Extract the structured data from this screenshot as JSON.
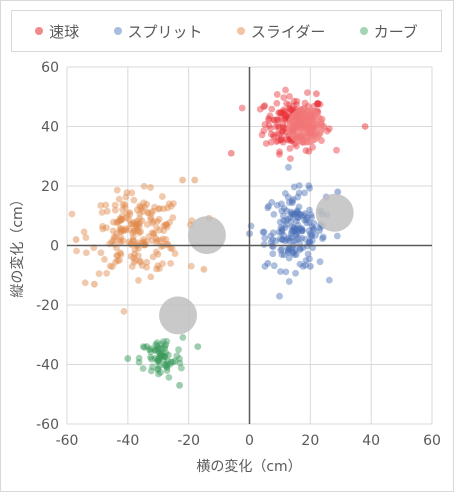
{
  "chart_data": {
    "type": "scatter",
    "xlabel": "横の変化（cm）",
    "ylabel": "縦の変化（cm）",
    "xlim": [
      -60,
      60
    ],
    "ylim": [
      -60,
      60
    ],
    "xticks": [
      -60,
      -40,
      -20,
      0,
      20,
      40,
      60
    ],
    "yticks": [
      -60,
      -40,
      -20,
      0,
      20,
      40,
      60
    ],
    "grid": true,
    "legend_position": "top",
    "series": [
      {
        "name": "速球",
        "color": "#e8343a",
        "center": {
          "x": 15,
          "y": 41,
          "sx": 5,
          "sy": 4.5
        },
        "count": 200,
        "points": [
          [
            38,
            40
          ],
          [
            -6,
            31
          ],
          [
            5,
            47
          ],
          [
            22,
            51
          ]
        ]
      },
      {
        "name": "スプリット",
        "color": "#4a6fb5",
        "center": {
          "x": 15,
          "y": 5,
          "sx": 5,
          "sy": 6.5
        },
        "count": 170,
        "points": [
          [
            0,
            4
          ],
          [
            29,
            18
          ],
          [
            6,
            -6
          ],
          [
            20,
            -7
          ]
        ]
      },
      {
        "name": "スライダー",
        "color": "#e08a4c",
        "center": {
          "x": -37,
          "y": 4,
          "sx": 7.5,
          "sy": 6.5
        },
        "count": 200,
        "points": [
          [
            -18,
            22
          ],
          [
            -22,
            22
          ],
          [
            -57,
            2
          ],
          [
            -51,
            -13
          ],
          [
            -15,
            -8
          ]
        ]
      },
      {
        "name": "カーブ",
        "color": "#3a9a5c",
        "center": {
          "x": -29,
          "y": -38,
          "sx": 3.5,
          "sy": 3.5
        },
        "count": 70,
        "points": [
          [
            -40,
            -38
          ],
          [
            -23,
            -47
          ],
          [
            -17,
            -34
          ]
        ]
      }
    ],
    "averages": [
      {
        "x": 18.5,
        "y": 40
      },
      {
        "x": 28,
        "y": 11
      },
      {
        "x": -14,
        "y": 3.5
      },
      {
        "x": -23.5,
        "y": -23.5
      }
    ],
    "average_colors": [
      "#f38080",
      "#c0c0c0",
      "#c0c0c0",
      "#c0c0c0"
    ]
  }
}
